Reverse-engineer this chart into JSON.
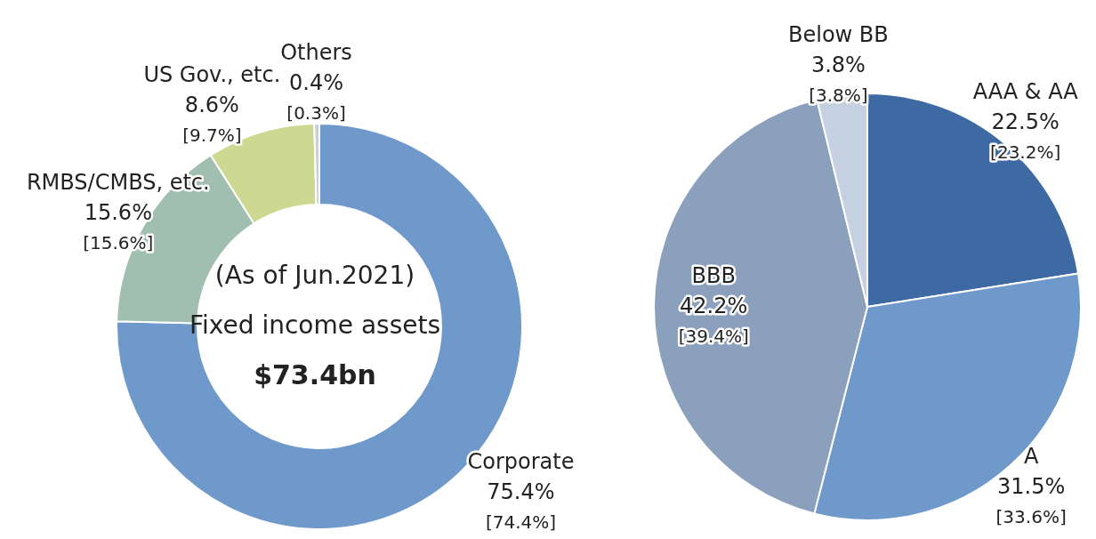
{
  "chart_data": [
    {
      "type": "donut",
      "categories": [
        "Corporate",
        "RMBS/CMBS, etc.",
        "US Gov., etc.",
        "Others"
      ],
      "values": [
        75.4,
        15.6,
        8.6,
        0.4
      ],
      "colors": [
        "#6f98cb",
        "#a0bfb0",
        "#cdd890",
        "#c8d0dc"
      ],
      "value_labels": [
        "75.4%",
        "15.6%",
        "8.6%",
        "0.4%"
      ],
      "annotations": [
        "(As of Jun.2021)",
        "Fixed income assets",
        "$73.4bn",
        {
          "text": "[74.4%]",
          "x": "Corporate"
        },
        {
          "text": "[15.6%]",
          "x": "RMBS/CMBS, etc."
        },
        {
          "text": "[9.7%]",
          "x": "US Gov., etc."
        },
        {
          "text": "[0.3%]",
          "x": "Others"
        }
      ]
    },
    {
      "type": "pie",
      "categories": [
        "AAA & AA",
        "A",
        "BBB",
        "Below BB"
      ],
      "values": [
        22.5,
        31.5,
        42.2,
        3.8
      ],
      "colors": [
        "#3e6aa3",
        "#6f98cb",
        "#8aa0bd",
        "#c5d0e0"
      ],
      "value_labels": [
        "22.5%",
        "31.5%",
        "42.2%",
        "3.8%"
      ],
      "annotations": [
        {
          "text": "[23.2%]",
          "x": "AAA & AA"
        },
        {
          "text": "[33.6%]",
          "x": "A"
        },
        {
          "text": "[39.4%]",
          "x": "BBB"
        },
        {
          "text": "[3.8%]",
          "x": "Below BB"
        }
      ]
    }
  ]
}
